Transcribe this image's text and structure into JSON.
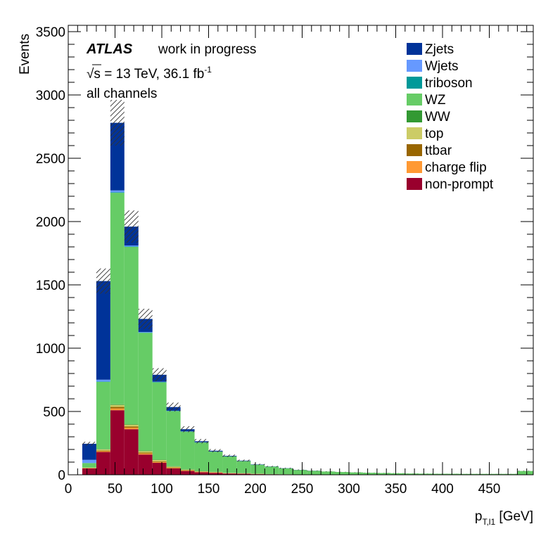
{
  "chart_data": {
    "type": "bar",
    "stacked": true,
    "experiment_label": "ATLAS",
    "experiment_status": "work in progress",
    "energy_text": "√s = 13 TeV, 36.1 fb",
    "energy_sup": "-1",
    "channel_text": "all channels",
    "xlabel_main": "p",
    "xlabel_sub": "T,l1",
    "xlabel_unit": " [GeV]",
    "ylabel": "Events",
    "xlim": [
      0,
      497
    ],
    "ylim": [
      0,
      3550
    ],
    "xticks": [
      0,
      50,
      100,
      150,
      200,
      250,
      300,
      350,
      400,
      450
    ],
    "yticks": [
      0,
      500,
      1000,
      1500,
      2000,
      2500,
      3000,
      3500
    ],
    "legend_position": "top-right",
    "bin_edges": [
      15,
      30,
      45,
      60,
      75,
      90,
      105,
      120,
      135,
      150,
      165,
      180,
      195,
      210,
      225,
      240,
      255,
      270,
      285,
      300,
      315,
      330,
      345,
      360,
      375,
      390,
      405,
      420,
      435,
      450,
      465,
      480,
      497
    ],
    "series": [
      {
        "name": "non-prompt",
        "color": "#99002d",
        "values": [
          50,
          180,
          510,
          360,
          160,
          95,
          50,
          30,
          20,
          15,
          10,
          8,
          5,
          4,
          3,
          2,
          2,
          1,
          1,
          1,
          1,
          1,
          1,
          0,
          0,
          0,
          0,
          0,
          0,
          0,
          0,
          0
        ]
      },
      {
        "name": "charge flip",
        "color": "#ff9933",
        "values": [
          2,
          6,
          14,
          12,
          8,
          6,
          4,
          3,
          2,
          2,
          1,
          1,
          1,
          0,
          0,
          0,
          0,
          0,
          0,
          0,
          0,
          0,
          0,
          0,
          0,
          0,
          0,
          0,
          0,
          0,
          0,
          0
        ]
      },
      {
        "name": "ttbar",
        "color": "#996600",
        "values": [
          1,
          5,
          12,
          10,
          7,
          6,
          4,
          3,
          2,
          2,
          1,
          1,
          1,
          0,
          0,
          0,
          0,
          0,
          0,
          0,
          0,
          0,
          0,
          0,
          0,
          0,
          0,
          0,
          0,
          0,
          0,
          0
        ]
      },
      {
        "name": "top",
        "color": "#cccc66",
        "values": [
          3,
          10,
          16,
          14,
          12,
          10,
          7,
          5,
          4,
          3,
          2,
          2,
          1,
          1,
          1,
          0,
          0,
          0,
          0,
          0,
          0,
          0,
          0,
          0,
          0,
          0,
          0,
          0,
          0,
          0,
          0,
          0
        ]
      },
      {
        "name": "WW",
        "color": "#339933",
        "values": [
          1,
          3,
          5,
          4,
          4,
          3,
          3,
          2,
          2,
          1,
          1,
          1,
          1,
          1,
          0,
          0,
          0,
          0,
          0,
          0,
          0,
          0,
          0,
          0,
          0,
          0,
          0,
          0,
          0,
          0,
          0,
          0
        ]
      },
      {
        "name": "WZ",
        "color": "#66cc66",
        "values": [
          35,
          530,
          1670,
          1400,
          930,
          610,
          435,
          298,
          225,
          160,
          130,
          95,
          70,
          58,
          46,
          36,
          29,
          25,
          21,
          18,
          15,
          13,
          11,
          10,
          9,
          8,
          8,
          7,
          7,
          7,
          7,
          30
        ]
      },
      {
        "name": "triboson",
        "color": "#009999",
        "values": [
          1,
          2,
          4,
          3,
          3,
          3,
          2,
          2,
          2,
          1,
          1,
          1,
          1,
          1,
          1,
          0,
          0,
          0,
          0,
          0,
          0,
          0,
          0,
          0,
          0,
          0,
          0,
          0,
          0,
          0,
          0,
          0
        ]
      },
      {
        "name": "Wjets",
        "color": "#6699ff",
        "values": [
          25,
          15,
          15,
          8,
          4,
          2,
          1,
          0,
          0,
          0,
          0,
          0,
          0,
          0,
          0,
          0,
          0,
          0,
          0,
          0,
          0,
          0,
          0,
          0,
          0,
          0,
          0,
          0,
          0,
          0,
          0,
          0
        ]
      },
      {
        "name": "Zjets",
        "color": "#003399",
        "values": [
          127,
          779,
          534,
          149,
          103,
          55,
          29,
          17,
          8,
          6,
          4,
          3,
          2,
          1,
          1,
          1,
          1,
          0,
          0,
          0,
          0,
          0,
          0,
          0,
          0,
          0,
          0,
          0,
          0,
          0,
          0,
          0
        ]
      }
    ],
    "uncertainty_fraction": 0.065
  }
}
